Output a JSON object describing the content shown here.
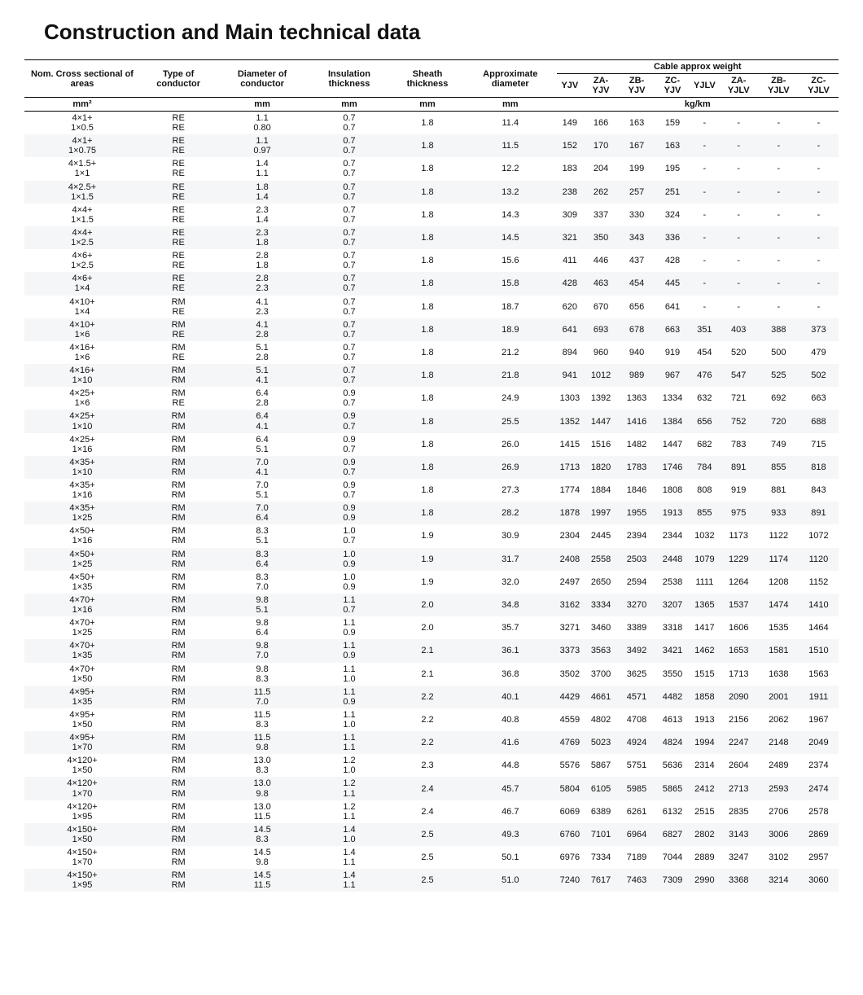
{
  "title": "Construction and Main technical data",
  "columns": {
    "nom": "Nom. Cross sectional of areas",
    "type": "Type of conductor",
    "dia": "Diameter of conductor",
    "ins": "Insulation thickness",
    "sheath": "Sheath thickness",
    "approx": "Approximate diameter",
    "weight_group": "Cable approx weight",
    "weights": [
      "YJV",
      "ZA-YJV",
      "ZB-YJV",
      "ZC-YJV",
      "YJLV",
      "ZA-YJLV",
      "ZB-YJLV",
      "ZC-YJLV"
    ],
    "unit_mm2": "mm²",
    "unit_mm": "mm",
    "unit_kg": "kg/km"
  },
  "rows": [
    {
      "nom": [
        "4×1+",
        "1×0.5"
      ],
      "type": [
        "RE",
        "RE"
      ],
      "dia": [
        "1.1",
        "0.80"
      ],
      "ins": [
        "0.7",
        "0.7"
      ],
      "sheath": "1.8",
      "approx": "11.4",
      "w": [
        "149",
        "166",
        "163",
        "159",
        "-",
        "-",
        "-",
        "-"
      ]
    },
    {
      "nom": [
        "4×1+",
        "1×0.75"
      ],
      "type": [
        "RE",
        "RE"
      ],
      "dia": [
        "1.1",
        "0.97"
      ],
      "ins": [
        "0.7",
        "0.7"
      ],
      "sheath": "1.8",
      "approx": "11.5",
      "w": [
        "152",
        "170",
        "167",
        "163",
        "-",
        "-",
        "-",
        "-"
      ]
    },
    {
      "nom": [
        "4×1.5+",
        "1×1"
      ],
      "type": [
        "RE",
        "RE"
      ],
      "dia": [
        "1.4",
        "1.1"
      ],
      "ins": [
        "0.7",
        "0.7"
      ],
      "sheath": "1.8",
      "approx": "12.2",
      "w": [
        "183",
        "204",
        "199",
        "195",
        "-",
        "-",
        "-",
        "-"
      ]
    },
    {
      "nom": [
        "4×2.5+",
        "1×1.5"
      ],
      "type": [
        "RE",
        "RE"
      ],
      "dia": [
        "1.8",
        "1.4"
      ],
      "ins": [
        "0.7",
        "0.7"
      ],
      "sheath": "1.8",
      "approx": "13.2",
      "w": [
        "238",
        "262",
        "257",
        "251",
        "-",
        "-",
        "-",
        "-"
      ]
    },
    {
      "nom": [
        "4×4+",
        "1×1.5"
      ],
      "type": [
        "RE",
        "RE"
      ],
      "dia": [
        "2.3",
        "1.4"
      ],
      "ins": [
        "0.7",
        "0.7"
      ],
      "sheath": "1.8",
      "approx": "14.3",
      "w": [
        "309",
        "337",
        "330",
        "324",
        "-",
        "-",
        "-",
        "-"
      ]
    },
    {
      "nom": [
        "4×4+",
        "1×2.5"
      ],
      "type": [
        "RE",
        "RE"
      ],
      "dia": [
        "2.3",
        "1.8"
      ],
      "ins": [
        "0.7",
        "0.7"
      ],
      "sheath": "1.8",
      "approx": "14.5",
      "w": [
        "321",
        "350",
        "343",
        "336",
        "-",
        "-",
        "-",
        "-"
      ]
    },
    {
      "nom": [
        "4×6+",
        "1×2.5"
      ],
      "type": [
        "RE",
        "RE"
      ],
      "dia": [
        "2.8",
        "1.8"
      ],
      "ins": [
        "0.7",
        "0.7"
      ],
      "sheath": "1.8",
      "approx": "15.6",
      "w": [
        "411",
        "446",
        "437",
        "428",
        "-",
        "-",
        "-",
        "-"
      ]
    },
    {
      "nom": [
        "4×6+",
        "1×4"
      ],
      "type": [
        "RE",
        "RE"
      ],
      "dia": [
        "2.8",
        "2.3"
      ],
      "ins": [
        "0.7",
        "0.7"
      ],
      "sheath": "1.8",
      "approx": "15.8",
      "w": [
        "428",
        "463",
        "454",
        "445",
        "-",
        "-",
        "-",
        "-"
      ]
    },
    {
      "nom": [
        "4×10+",
        "1×4"
      ],
      "type": [
        "RM",
        "RE"
      ],
      "dia": [
        "4.1",
        "2.3"
      ],
      "ins": [
        "0.7",
        "0.7"
      ],
      "sheath": "1.8",
      "approx": "18.7",
      "w": [
        "620",
        "670",
        "656",
        "641",
        "-",
        "-",
        "-",
        "-"
      ]
    },
    {
      "nom": [
        "4×10+",
        "1×6"
      ],
      "type": [
        "RM",
        "RE"
      ],
      "dia": [
        "4.1",
        "2.8"
      ],
      "ins": [
        "0.7",
        "0.7"
      ],
      "sheath": "1.8",
      "approx": "18.9",
      "w": [
        "641",
        "693",
        "678",
        "663",
        "351",
        "403",
        "388",
        "373"
      ]
    },
    {
      "nom": [
        "4×16+",
        "1×6"
      ],
      "type": [
        "RM",
        "RE"
      ],
      "dia": [
        "5.1",
        "2.8"
      ],
      "ins": [
        "0.7",
        "0.7"
      ],
      "sheath": "1.8",
      "approx": "21.2",
      "w": [
        "894",
        "960",
        "940",
        "919",
        "454",
        "520",
        "500",
        "479"
      ]
    },
    {
      "nom": [
        "4×16+",
        "1×10"
      ],
      "type": [
        "RM",
        "RM"
      ],
      "dia": [
        "5.1",
        "4.1"
      ],
      "ins": [
        "0.7",
        "0.7"
      ],
      "sheath": "1.8",
      "approx": "21.8",
      "w": [
        "941",
        "1012",
        "989",
        "967",
        "476",
        "547",
        "525",
        "502"
      ]
    },
    {
      "nom": [
        "4×25+",
        "1×6"
      ],
      "type": [
        "RM",
        "RE"
      ],
      "dia": [
        "6.4",
        "2.8"
      ],
      "ins": [
        "0.9",
        "0.7"
      ],
      "sheath": "1.8",
      "approx": "24.9",
      "w": [
        "1303",
        "1392",
        "1363",
        "1334",
        "632",
        "721",
        "692",
        "663"
      ]
    },
    {
      "nom": [
        "4×25+",
        "1×10"
      ],
      "type": [
        "RM",
        "RM"
      ],
      "dia": [
        "6.4",
        "4.1"
      ],
      "ins": [
        "0.9",
        "0.7"
      ],
      "sheath": "1.8",
      "approx": "25.5",
      "w": [
        "1352",
        "1447",
        "1416",
        "1384",
        "656",
        "752",
        "720",
        "688"
      ]
    },
    {
      "nom": [
        "4×25+",
        "1×16"
      ],
      "type": [
        "RM",
        "RM"
      ],
      "dia": [
        "6.4",
        "5.1"
      ],
      "ins": [
        "0.9",
        "0.7"
      ],
      "sheath": "1.8",
      "approx": "26.0",
      "w": [
        "1415",
        "1516",
        "1482",
        "1447",
        "682",
        "783",
        "749",
        "715"
      ]
    },
    {
      "nom": [
        "4×35+",
        "1×10"
      ],
      "type": [
        "RM",
        "RM"
      ],
      "dia": [
        "7.0",
        "4.1"
      ],
      "ins": [
        "0.9",
        "0.7"
      ],
      "sheath": "1.8",
      "approx": "26.9",
      "w": [
        "1713",
        "1820",
        "1783",
        "1746",
        "784",
        "891",
        "855",
        "818"
      ]
    },
    {
      "nom": [
        "4×35+",
        "1×16"
      ],
      "type": [
        "RM",
        "RM"
      ],
      "dia": [
        "7.0",
        "5.1"
      ],
      "ins": [
        "0.9",
        "0.7"
      ],
      "sheath": "1.8",
      "approx": "27.3",
      "w": [
        "1774",
        "1884",
        "1846",
        "1808",
        "808",
        "919",
        "881",
        "843"
      ]
    },
    {
      "nom": [
        "4×35+",
        "1×25"
      ],
      "type": [
        "RM",
        "RM"
      ],
      "dia": [
        "7.0",
        "6.4"
      ],
      "ins": [
        "0.9",
        "0.9"
      ],
      "sheath": "1.8",
      "approx": "28.2",
      "w": [
        "1878",
        "1997",
        "1955",
        "1913",
        "855",
        "975",
        "933",
        "891"
      ]
    },
    {
      "nom": [
        "4×50+",
        "1×16"
      ],
      "type": [
        "RM",
        "RM"
      ],
      "dia": [
        "8.3",
        "5.1"
      ],
      "ins": [
        "1.0",
        "0.7"
      ],
      "sheath": "1.9",
      "approx": "30.9",
      "w": [
        "2304",
        "2445",
        "2394",
        "2344",
        "1032",
        "1173",
        "1122",
        "1072"
      ]
    },
    {
      "nom": [
        "4×50+",
        "1×25"
      ],
      "type": [
        "RM",
        "RM"
      ],
      "dia": [
        "8.3",
        "6.4"
      ],
      "ins": [
        "1.0",
        "0.9"
      ],
      "sheath": "1.9",
      "approx": "31.7",
      "w": [
        "2408",
        "2558",
        "2503",
        "2448",
        "1079",
        "1229",
        "1174",
        "1120"
      ]
    },
    {
      "nom": [
        "4×50+",
        "1×35"
      ],
      "type": [
        "RM",
        "RM"
      ],
      "dia": [
        "8.3",
        "7.0"
      ],
      "ins": [
        "1.0",
        "0.9"
      ],
      "sheath": "1.9",
      "approx": "32.0",
      "w": [
        "2497",
        "2650",
        "2594",
        "2538",
        "1111",
        "1264",
        "1208",
        "1152"
      ]
    },
    {
      "nom": [
        "4×70+",
        "1×16"
      ],
      "type": [
        "RM",
        "RM"
      ],
      "dia": [
        "9.8",
        "5.1"
      ],
      "ins": [
        "1.1",
        "0.7"
      ],
      "sheath": "2.0",
      "approx": "34.8",
      "w": [
        "3162",
        "3334",
        "3270",
        "3207",
        "1365",
        "1537",
        "1474",
        "1410"
      ]
    },
    {
      "nom": [
        "4×70+",
        "1×25"
      ],
      "type": [
        "RM",
        "RM"
      ],
      "dia": [
        "9.8",
        "6.4"
      ],
      "ins": [
        "1.1",
        "0.9"
      ],
      "sheath": "2.0",
      "approx": "35.7",
      "w": [
        "3271",
        "3460",
        "3389",
        "3318",
        "1417",
        "1606",
        "1535",
        "1464"
      ]
    },
    {
      "nom": [
        "4×70+",
        "1×35"
      ],
      "type": [
        "RM",
        "RM"
      ],
      "dia": [
        "9.8",
        "7.0"
      ],
      "ins": [
        "1.1",
        "0.9"
      ],
      "sheath": "2.1",
      "approx": "36.1",
      "w": [
        "3373",
        "3563",
        "3492",
        "3421",
        "1462",
        "1653",
        "1581",
        "1510"
      ]
    },
    {
      "nom": [
        "4×70+",
        "1×50"
      ],
      "type": [
        "RM",
        "RM"
      ],
      "dia": [
        "9.8",
        "8.3"
      ],
      "ins": [
        "1.1",
        "1.0"
      ],
      "sheath": "2.1",
      "approx": "36.8",
      "w": [
        "3502",
        "3700",
        "3625",
        "3550",
        "1515",
        "1713",
        "1638",
        "1563"
      ]
    },
    {
      "nom": [
        "4×95+",
        "1×35"
      ],
      "type": [
        "RM",
        "RM"
      ],
      "dia": [
        "11.5",
        "7.0"
      ],
      "ins": [
        "1.1",
        "0.9"
      ],
      "sheath": "2.2",
      "approx": "40.1",
      "w": [
        "4429",
        "4661",
        "4571",
        "4482",
        "1858",
        "2090",
        "2001",
        "1911"
      ]
    },
    {
      "nom": [
        "4×95+",
        "1×50"
      ],
      "type": [
        "RM",
        "RM"
      ],
      "dia": [
        "11.5",
        "8.3"
      ],
      "ins": [
        "1.1",
        "1.0"
      ],
      "sheath": "2.2",
      "approx": "40.8",
      "w": [
        "4559",
        "4802",
        "4708",
        "4613",
        "1913",
        "2156",
        "2062",
        "1967"
      ]
    },
    {
      "nom": [
        "4×95+",
        "1×70"
      ],
      "type": [
        "RM",
        "RM"
      ],
      "dia": [
        "11.5",
        "9.8"
      ],
      "ins": [
        "1.1",
        "1.1"
      ],
      "sheath": "2.2",
      "approx": "41.6",
      "w": [
        "4769",
        "5023",
        "4924",
        "4824",
        "1994",
        "2247",
        "2148",
        "2049"
      ]
    },
    {
      "nom": [
        "4×120+",
        "1×50"
      ],
      "type": [
        "RM",
        "RM"
      ],
      "dia": [
        "13.0",
        "8.3"
      ],
      "ins": [
        "1.2",
        "1.0"
      ],
      "sheath": "2.3",
      "approx": "44.8",
      "w": [
        "5576",
        "5867",
        "5751",
        "5636",
        "2314",
        "2604",
        "2489",
        "2374"
      ]
    },
    {
      "nom": [
        "4×120+",
        "1×70"
      ],
      "type": [
        "RM",
        "RM"
      ],
      "dia": [
        "13.0",
        "9.8"
      ],
      "ins": [
        "1.2",
        "1.1"
      ],
      "sheath": "2.4",
      "approx": "45.7",
      "w": [
        "5804",
        "6105",
        "5985",
        "5865",
        "2412",
        "2713",
        "2593",
        "2474"
      ]
    },
    {
      "nom": [
        "4×120+",
        "1×95"
      ],
      "type": [
        "RM",
        "RM"
      ],
      "dia": [
        "13.0",
        "11.5"
      ],
      "ins": [
        "1.2",
        "1.1"
      ],
      "sheath": "2.4",
      "approx": "46.7",
      "w": [
        "6069",
        "6389",
        "6261",
        "6132",
        "2515",
        "2835",
        "2706",
        "2578"
      ]
    },
    {
      "nom": [
        "4×150+",
        "1×50"
      ],
      "type": [
        "RM",
        "RM"
      ],
      "dia": [
        "14.5",
        "8.3"
      ],
      "ins": [
        "1.4",
        "1.0"
      ],
      "sheath": "2.5",
      "approx": "49.3",
      "w": [
        "6760",
        "7101",
        "6964",
        "6827",
        "2802",
        "3143",
        "3006",
        "2869"
      ]
    },
    {
      "nom": [
        "4×150+",
        "1×70"
      ],
      "type": [
        "RM",
        "RM"
      ],
      "dia": [
        "14.5",
        "9.8"
      ],
      "ins": [
        "1.4",
        "1.1"
      ],
      "sheath": "2.5",
      "approx": "50.1",
      "w": [
        "6976",
        "7334",
        "7189",
        "7044",
        "2889",
        "3247",
        "3102",
        "2957"
      ]
    },
    {
      "nom": [
        "4×150+",
        "1×95"
      ],
      "type": [
        "RM",
        "RM"
      ],
      "dia": [
        "14.5",
        "11.5"
      ],
      "ins": [
        "1.4",
        "1.1"
      ],
      "sheath": "2.5",
      "approx": "51.0",
      "w": [
        "7240",
        "7617",
        "7463",
        "7309",
        "2990",
        "3368",
        "3214",
        "3060"
      ]
    }
  ]
}
